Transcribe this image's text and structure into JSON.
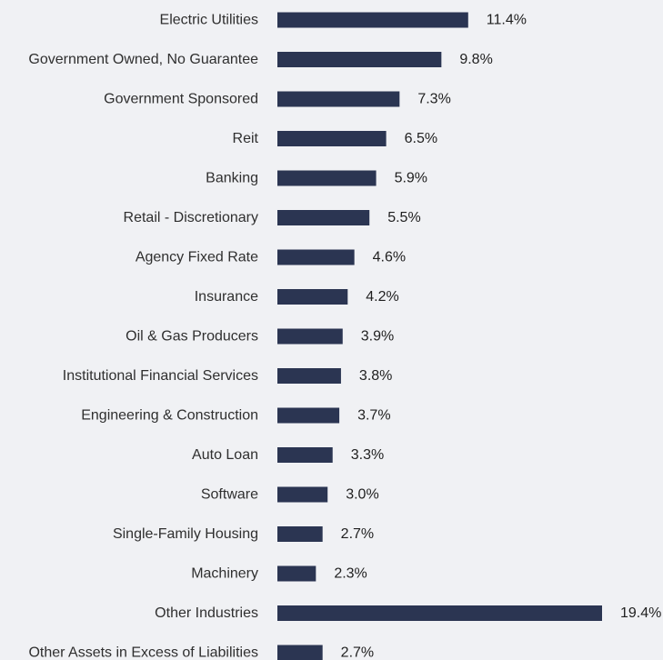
{
  "chart_data": {
    "type": "bar",
    "orientation": "horizontal",
    "categories": [
      "Electric Utilities",
      "Government Owned, No Guarantee",
      "Government Sponsored",
      "Reit",
      "Banking",
      "Retail - Discretionary",
      "Agency Fixed Rate",
      "Insurance",
      "Oil & Gas Producers",
      "Institutional Financial Services",
      "Engineering & Construction",
      "Auto Loan",
      "Software",
      "Single-Family Housing",
      "Machinery",
      "Other Industries",
      "Other Assets in Excess of Liabilities"
    ],
    "values": [
      11.4,
      9.8,
      7.3,
      6.5,
      5.9,
      5.5,
      4.6,
      4.2,
      3.9,
      3.8,
      3.7,
      3.3,
      3.0,
      2.7,
      2.3,
      19.4,
      2.7
    ],
    "value_labels": [
      "11.4%",
      "9.8%",
      "7.3%",
      "6.5%",
      "5.9%",
      "5.5%",
      "4.6%",
      "4.2%",
      "3.9%",
      "3.8%",
      "3.7%",
      "3.3%",
      "3.0%",
      "2.7%",
      "2.3%",
      "19.4%",
      "2.7%"
    ],
    "title": "",
    "xlabel": "",
    "ylabel": "",
    "xlim": [
      0,
      19.4
    ],
    "grid": false,
    "legend": "none",
    "bar_color": "#2b3552",
    "background_color": "#f0f1f4"
  }
}
